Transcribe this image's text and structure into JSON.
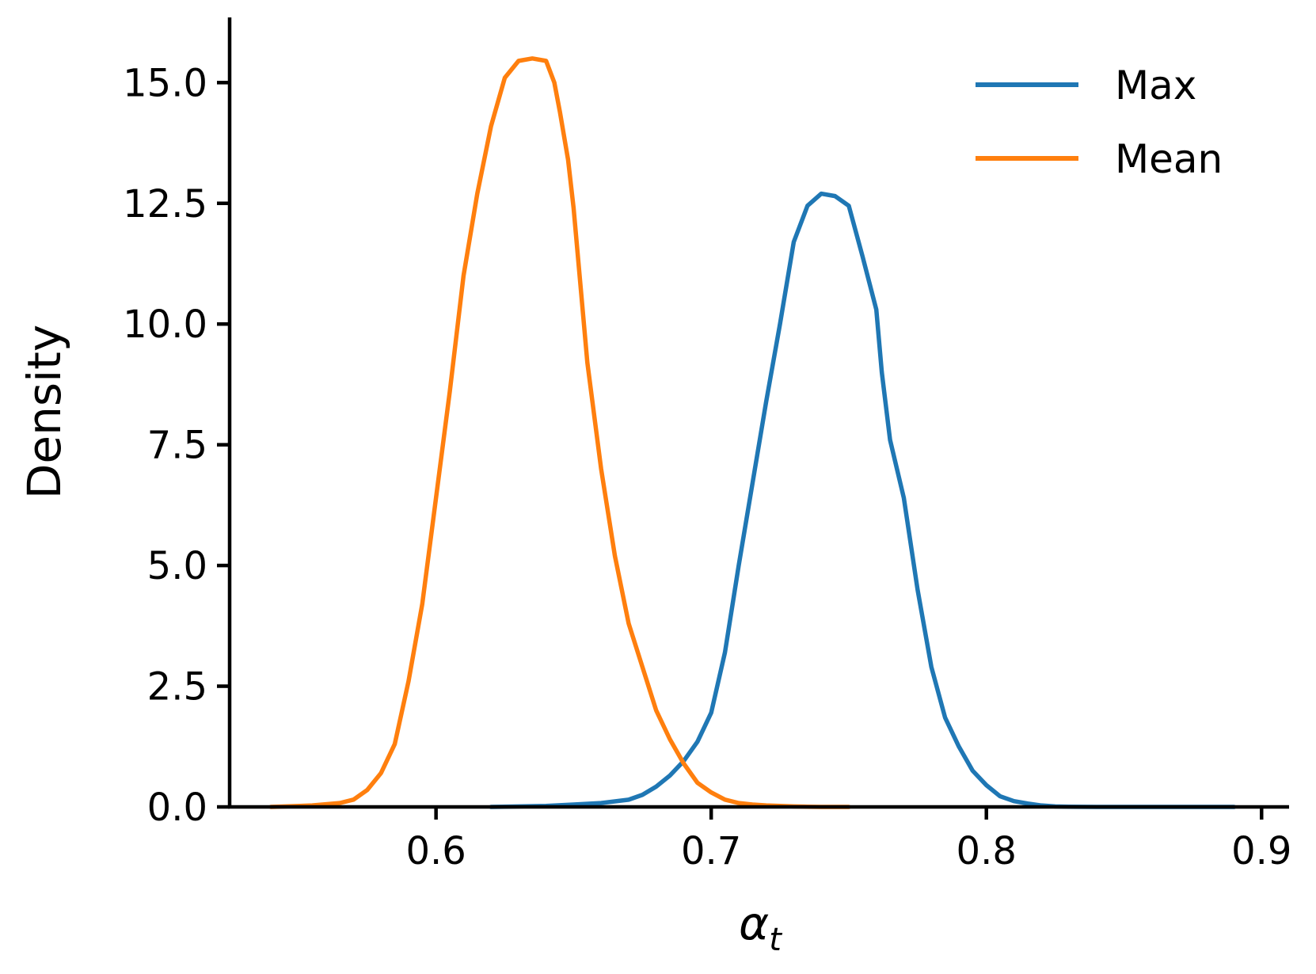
{
  "chart_data": {
    "type": "line",
    "xlabel": "α",
    "xlabel_subscript": "t",
    "ylabel": "Density",
    "xlim": [
      0.525,
      0.91
    ],
    "ylim": [
      0,
      16.35
    ],
    "x_ticks": [
      0.6,
      0.7,
      0.8,
      0.9
    ],
    "x_tick_labels": [
      "0.6",
      "0.7",
      "0.8",
      "0.9"
    ],
    "y_ticks": [
      0,
      2.5,
      5,
      7.5,
      10,
      12.5,
      15
    ],
    "y_tick_labels": [
      "0.0",
      "2.5",
      "5.0",
      "7.5",
      "10.0",
      "12.5",
      "15.0"
    ],
    "grid": false,
    "legend_position": "top-right",
    "series": [
      {
        "name": "Max",
        "color": "#1f77b4",
        "x": [
          0.62,
          0.64,
          0.65,
          0.66,
          0.67,
          0.675,
          0.68,
          0.685,
          0.69,
          0.695,
          0.7,
          0.705,
          0.71,
          0.715,
          0.72,
          0.725,
          0.73,
          0.735,
          0.74,
          0.745,
          0.75,
          0.755,
          0.76,
          0.762,
          0.765,
          0.77,
          0.775,
          0.78,
          0.785,
          0.79,
          0.795,
          0.8,
          0.805,
          0.81,
          0.815,
          0.82,
          0.825,
          0.83,
          0.835,
          0.84,
          0.845,
          0.85,
          0.86,
          0.87,
          0.88,
          0.89
        ],
        "values": [
          0,
          0.02,
          0.05,
          0.08,
          0.15,
          0.25,
          0.42,
          0.65,
          0.95,
          1.35,
          1.95,
          3.2,
          5.0,
          6.7,
          8.4,
          10.0,
          11.7,
          12.45,
          12.7,
          12.65,
          12.45,
          11.4,
          10.3,
          9.0,
          7.6,
          6.4,
          4.5,
          2.9,
          1.85,
          1.25,
          0.75,
          0.45,
          0.22,
          0.12,
          0.07,
          0.03,
          0.01,
          0.005,
          0.002,
          0.001,
          0.0005,
          0.0002,
          0.0001,
          0.0,
          0.0,
          0.0
        ]
      },
      {
        "name": "Mean",
        "color": "#ff7f0e",
        "x": [
          0.54,
          0.555,
          0.565,
          0.57,
          0.575,
          0.58,
          0.585,
          0.59,
          0.595,
          0.6,
          0.605,
          0.61,
          0.615,
          0.62,
          0.625,
          0.63,
          0.635,
          0.64,
          0.643,
          0.645,
          0.648,
          0.65,
          0.655,
          0.66,
          0.665,
          0.67,
          0.675,
          0.68,
          0.685,
          0.69,
          0.695,
          0.7,
          0.705,
          0.71,
          0.715,
          0.72,
          0.725,
          0.73,
          0.735,
          0.74,
          0.75
        ],
        "values": [
          0.0,
          0.03,
          0.08,
          0.15,
          0.35,
          0.7,
          1.3,
          2.6,
          4.2,
          6.4,
          8.6,
          11.0,
          12.7,
          14.1,
          15.1,
          15.45,
          15.5,
          15.45,
          15.0,
          14.4,
          13.4,
          12.4,
          9.2,
          7.0,
          5.2,
          3.8,
          2.9,
          2.0,
          1.4,
          0.9,
          0.5,
          0.3,
          0.15,
          0.08,
          0.05,
          0.03,
          0.02,
          0.01,
          0.005,
          0.0,
          0.0
        ]
      }
    ]
  }
}
